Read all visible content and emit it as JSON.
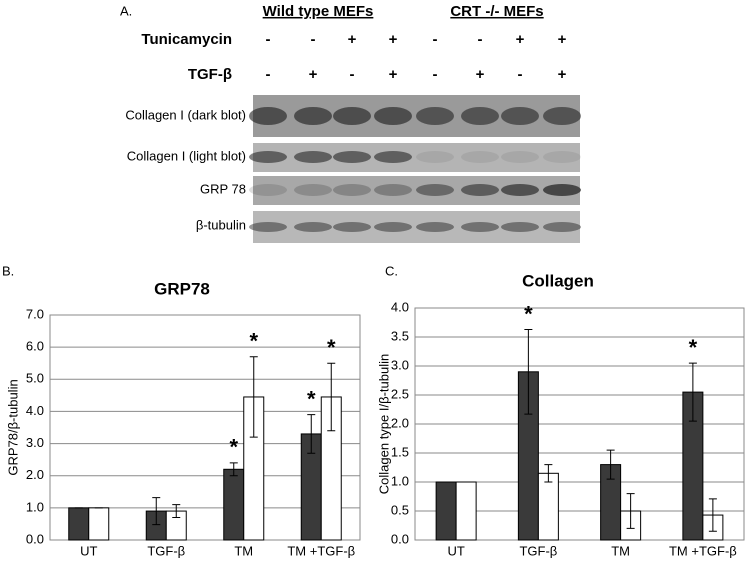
{
  "figure": {
    "panel_a": "A.",
    "panel_b": "B.",
    "panel_c": "C.",
    "group_labels": [
      "Wild type MEFs",
      "CRT -/- MEFs"
    ],
    "row_labels": [
      "Tunicamycin",
      "TGF-β"
    ],
    "tunicamycin_signs": [
      "-",
      "-",
      "+",
      "+",
      "-",
      "-",
      "+",
      "+"
    ],
    "tgf_signs": [
      "-",
      "+",
      "-",
      "+",
      "-",
      "+",
      "-",
      "+"
    ],
    "blot_labels": [
      "Collagen I (dark blot)",
      "Collagen I (light blot)",
      "GRP 78",
      "β-tubulin"
    ]
  },
  "chart_data": [
    {
      "type": "bar",
      "title": "GRP78",
      "y_label": "GRP78/β-tubulin",
      "categories": [
        "UT",
        "TGF-β",
        "TM",
        "TM +TGF-β"
      ],
      "significance_mark": "*",
      "series": [
        {
          "color": "#3a3a3a",
          "values": [
            1.0,
            0.9,
            2.2,
            3.3
          ],
          "errors": [
            0,
            0.42,
            0.2,
            0.6
          ],
          "significant": [
            false,
            false,
            true,
            true
          ]
        },
        {
          "color": "#ffffff",
          "values": [
            1.0,
            0.9,
            4.45,
            4.45
          ],
          "errors": [
            0,
            0.2,
            1.25,
            1.05
          ],
          "significant": [
            false,
            false,
            true,
            true
          ]
        }
      ],
      "ylim": [
        0,
        7
      ],
      "yticks": [
        {
          "value": 0,
          "label": "0.0"
        },
        {
          "value": 1,
          "label": "1.0"
        },
        {
          "value": 2,
          "label": "2.0"
        },
        {
          "value": 3,
          "label": "3.0"
        },
        {
          "value": 4,
          "label": "4.0"
        },
        {
          "value": 5,
          "label": "5.0"
        },
        {
          "value": 6,
          "label": "6.0"
        },
        {
          "value": 7,
          "label": "7.0"
        }
      ],
      "grid": true
    },
    {
      "type": "bar",
      "title": "Collagen",
      "y_label": "Collagen type I/β-tubulin",
      "categories": [
        "UT",
        "TGF-β",
        "TM",
        "TM +TGF-β"
      ],
      "significance_mark": "*",
      "series": [
        {
          "color": "#3a3a3a",
          "values": [
            1.0,
            2.9,
            1.3,
            2.55
          ],
          "errors": [
            0,
            0.73,
            0.25,
            0.5
          ],
          "significant": [
            false,
            true,
            false,
            true
          ]
        },
        {
          "color": "#ffffff",
          "values": [
            1.0,
            1.15,
            0.5,
            0.43
          ],
          "errors": [
            0,
            0.15,
            0.3,
            0.28
          ],
          "significant": [
            false,
            false,
            false,
            false
          ]
        }
      ],
      "ylim": [
        0,
        4
      ],
      "yticks": [
        {
          "value": 0,
          "label": "0.0"
        },
        {
          "value": 0.5,
          "label": "0.5"
        },
        {
          "value": 1,
          "label": "1.0"
        },
        {
          "value": 1.5,
          "label": "1.5"
        },
        {
          "value": 2,
          "label": "2.0"
        },
        {
          "value": 2.5,
          "label": "2.5"
        },
        {
          "value": 3,
          "label": "3.0"
        },
        {
          "value": 3.5,
          "label": "3.5"
        },
        {
          "value": 4,
          "label": "4.0"
        }
      ],
      "grid": true
    }
  ]
}
